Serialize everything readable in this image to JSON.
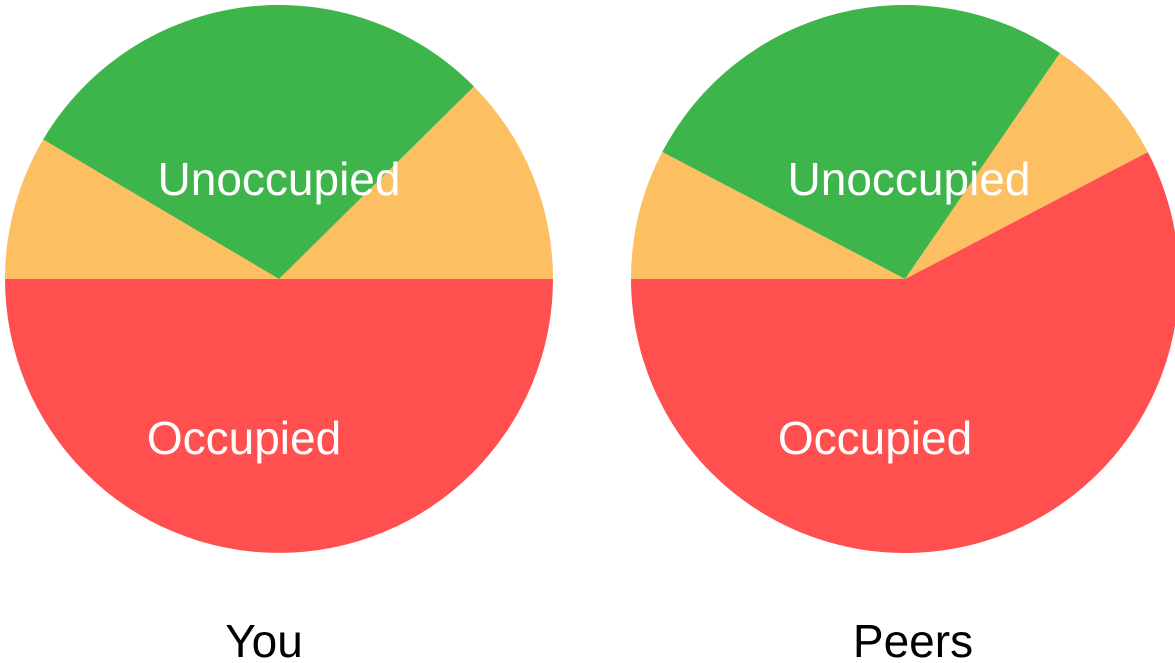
{
  "chart_data": [
    {
      "type": "pie",
      "caption": "You",
      "slices": [
        {
          "label": "Unoccupied",
          "value": 50.0,
          "color": "#FF4F4F"
        },
        {
          "label": "",
          "value": 12.4,
          "color": "#FCBF62"
        },
        {
          "label": "Occupied",
          "value": 29.1,
          "color": "#3DB54A"
        },
        {
          "label": "",
          "value": 8.5,
          "color": "#FCBF62"
        }
      ]
    },
    {
      "type": "pie",
      "caption": "Peers",
      "slices": [
        {
          "label": "Unoccupied",
          "value": 62.4,
          "color": "#FF4F4F"
        },
        {
          "label": "",
          "value": 8.4,
          "color": "#FCBF62"
        },
        {
          "label": "Occupied",
          "value": 29.1,
          "color": "#3DB54A"
        },
        {
          "label": "",
          "value": 8.3,
          "color": "#FCBF62"
        }
      ]
    }
  ]
}
